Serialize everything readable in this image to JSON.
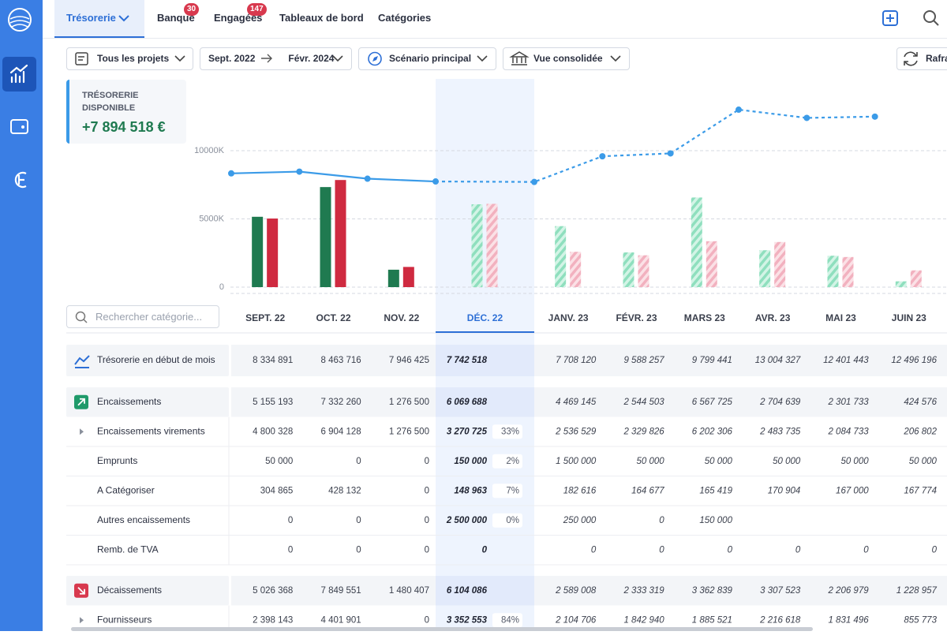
{
  "nav": {
    "tabs": [
      {
        "label": "Trésorerie"
      },
      {
        "label": "Banque",
        "badge": 30
      },
      {
        "label": "Engagées",
        "badge": 147
      },
      {
        "label": "Tableaux de bord"
      },
      {
        "label": "Catégories"
      }
    ]
  },
  "filters": {
    "project": "Tous les projets",
    "period_start": "Sept. 2022",
    "period_end": "Févr. 2024",
    "scenario": "Scénario principal",
    "view": "Vue consolidée",
    "refresh": "Rafraîchir"
  },
  "kpi": {
    "label": "TRÉSORERIE DISPONIBLE",
    "value": "+7 894 518 €"
  },
  "search": {
    "placeholder": "Rechercher catégorie..."
  },
  "chart_data": {
    "type": "bar",
    "categories": [
      "SEPT. 22",
      "OCT. 22",
      "NOV. 22",
      "DÉC. 22",
      "JANV. 23",
      "FÉVR. 23",
      "MARS 23",
      "AVR. 23",
      "MAI 23",
      "JUIN 23"
    ],
    "selected_category": "DÉC. 22",
    "series": [
      {
        "color": "#1f7a50",
        "values": [
          5155193,
          7332260,
          1276500,
          6069688,
          4469145,
          2544503,
          6567725,
          2704639,
          2301733,
          424576
        ]
      },
      {
        "color": "#cf2a40",
        "values": [
          5026368,
          7849551,
          1480407,
          6104086,
          2589008,
          2333319,
          3362839,
          3307523,
          2206979,
          1228957
        ]
      },
      {
        "type": "line",
        "color": "#3b9be8",
        "values": [
          8334891,
          8463716,
          7946425,
          7742518,
          7708120,
          9588257,
          9799441,
          13004327,
          12401443,
          12496196
        ]
      }
    ],
    "ylim": [
      0,
      15000000
    ],
    "yticks": [
      0,
      {
        "value": 5000000,
        "label": "5000K"
      },
      {
        "value": 10000000,
        "label": "10000K"
      }
    ],
    "grid": true
  },
  "table": {
    "rows": [
      {
        "kind": "total",
        "label": "Trésorerie en début de mois",
        "values": [
          "8 334 891",
          "8 463 716",
          "7 946 425",
          "7 742 518",
          "7 708 120",
          "9 588 257",
          "9 799 441",
          "13 004 327",
          "12 401 443",
          "12 496 196"
        ]
      },
      {
        "kind": "in",
        "label": "Encaissements",
        "values": [
          "5 155 193",
          "7 332 260",
          "1 276 500",
          "6 069 688",
          "4 469 145",
          "2 544 503",
          "6 567 725",
          "2 704 639",
          "2 301 733",
          "424 576"
        ]
      },
      {
        "kind": "detail",
        "expandable": true,
        "label": "Encaissements virements",
        "values": [
          "4 800 328",
          "6 904 128",
          "1 276 500",
          "3 270 725",
          "2 536 529",
          "2 329 826",
          "6 202 306",
          "2 483 735",
          "2 084 733",
          "206 802"
        ],
        "selected_pct": "33%"
      },
      {
        "kind": "detail",
        "label": "Emprunts",
        "values": [
          "50 000",
          "0",
          "0",
          "150 000",
          "1 500 000",
          "50 000",
          "50 000",
          "50 000",
          "50 000",
          "50 000"
        ],
        "selected_pct": "2%"
      },
      {
        "kind": "detail",
        "label": "A Catégoriser",
        "values": [
          "304 865",
          "428 132",
          "0",
          "148 963",
          "182 616",
          "164 677",
          "165 419",
          "170 904",
          "167 000",
          "167 774"
        ],
        "selected_pct": "7%"
      },
      {
        "kind": "detail",
        "label": "Autres encaissements",
        "values": [
          "0",
          "0",
          "0",
          "2 500 000",
          "250 000",
          "0",
          "150 000",
          null,
          null,
          null
        ],
        "selected_pct": "0%"
      },
      {
        "kind": "detail",
        "label": "Remb. de TVA",
        "values": [
          "0",
          "0",
          "0",
          "0",
          "0",
          "0",
          "0",
          "0",
          "0",
          "0"
        ]
      },
      {
        "kind": "out",
        "label": "Décaissements",
        "values": [
          "5 026 368",
          "7 849 551",
          "1 480 407",
          "6 104 086",
          "2 589 008",
          "2 333 319",
          "3 362 839",
          "3 307 523",
          "2 206 979",
          "1 228 957"
        ]
      },
      {
        "kind": "detail",
        "expandable": true,
        "label": "Fournisseurs",
        "values": [
          "2 398 143",
          "4 401 901",
          "0",
          "3 352 553",
          "2 104 706",
          "1 842 940",
          "1 885 521",
          "2 216 618",
          "1 831 496",
          "855 773"
        ],
        "selected_pct": "84%"
      }
    ]
  }
}
